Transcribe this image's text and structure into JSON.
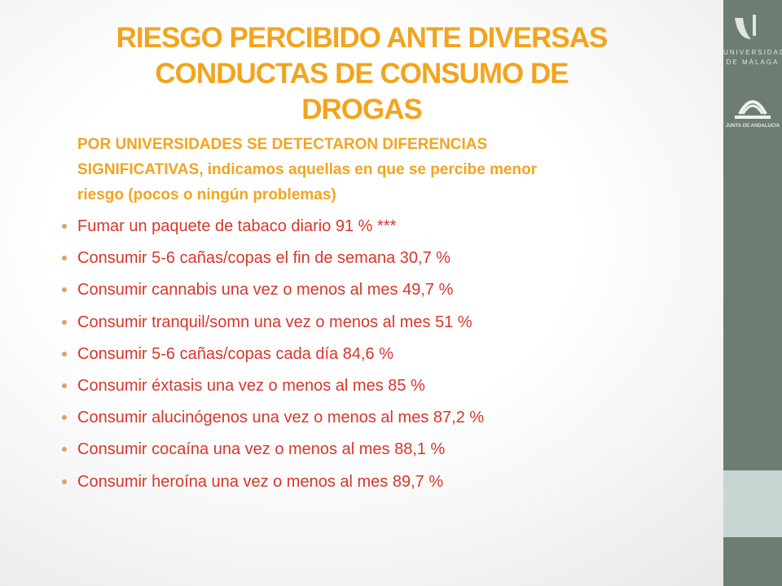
{
  "title_lines": [
    "RIESGO PERCIBIDO ANTE DIVERSAS",
    "CONDUCTAS DE CONSUMO DE",
    "DROGAS"
  ],
  "subtitle_lines": [
    "POR  UNIVERSIDADES SE DETECTARON DIFERENCIAS",
    "SIGNIFICATIVAS, indicamos aquellas en que se percibe menor",
    "riesgo (pocos o ningún problemas)"
  ],
  "bullets": [
    "Fumar un paquete de tabaco diario  91 % ***",
    "Consumir 5-6 cañas/copas el fin de semana  30,7 %",
    "Consumir cannabis una vez o menos al mes  49,7 %",
    "Consumir tranquil/somn una vez o menos al mes 51 %",
    "Consumir 5-6 cañas/copas cada día 84,6 %",
    "Consumir éxtasis una vez o menos al mes 85 %",
    "Consumir alucinógenos una vez o menos al mes 87,2 %",
    "Consumir cocaína una vez o menos al mes 88,1 %",
    "Consumir heroína una vez o menos al mes  89,7 %"
  ],
  "logos": {
    "university": [
      "UNIVERSIDAD",
      "DE MÁLAGA"
    ],
    "junta": "JUNTA DE ANDALUCIA"
  }
}
